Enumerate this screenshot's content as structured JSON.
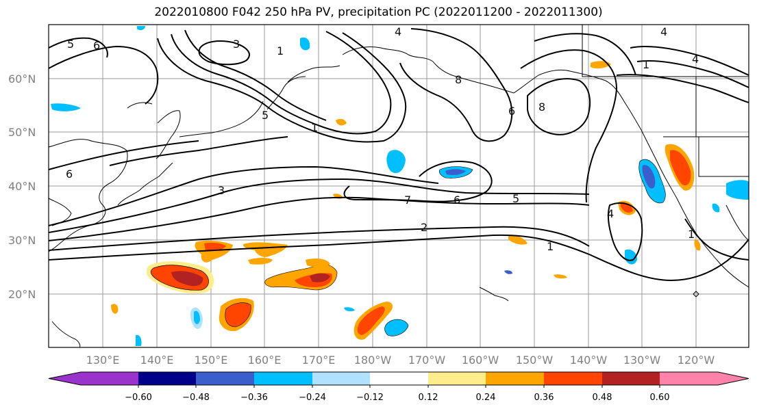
{
  "title": "2022010800 F042 250 hPa PV, precipitation PC (2022011200 - 2022011300)",
  "map": {
    "lat_labels": [
      "60°N",
      "50°N",
      "40°N",
      "30°N",
      "20°N"
    ],
    "lon_labels": [
      "130°E",
      "140°E",
      "150°E",
      "160°E",
      "170°E",
      "180°W",
      "170°W",
      "160°W",
      "150°W",
      "140°W",
      "130°W",
      "120°W"
    ],
    "contour_labels": [
      "5",
      "6",
      "3",
      "1",
      "4",
      "5",
      "1",
      "8",
      "6",
      "8",
      "4",
      "1",
      "4",
      "6",
      "3",
      "7",
      "6",
      "5",
      "2",
      "1",
      "4",
      "1"
    ]
  },
  "colorbar": {
    "tick_labels": [
      "−0.60",
      "−0.48",
      "−0.36",
      "−0.24",
      "−0.12",
      "0.12",
      "0.24",
      "0.36",
      "0.48",
      "0.60"
    ],
    "colors": [
      "#9933cc",
      "#00008b",
      "#3a5fcd",
      "#00bfff",
      "#b0e2ff",
      "#ffffff",
      "#ffec8b",
      "#ffa500",
      "#ff4500",
      "#b22222",
      "#ff82ab"
    ]
  }
}
